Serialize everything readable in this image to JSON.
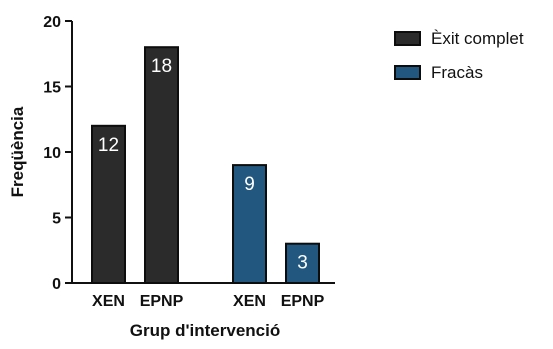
{
  "chart_data": {
    "type": "bar",
    "xlabel": "Grup d'intervenció",
    "ylabel": "Freqüència",
    "ylim": [
      0,
      20
    ],
    "yticks": [
      0,
      5,
      10,
      15,
      20
    ],
    "grid": false,
    "legend_position": "top-right",
    "series": [
      {
        "name": "Èxit complet",
        "color": "#2b2b2b",
        "categories": [
          "XEN",
          "EPNP"
        ],
        "values": [
          12,
          18
        ]
      },
      {
        "name": "Fracàs",
        "color": "#22587f",
        "categories": [
          "XEN",
          "EPNP"
        ],
        "values": [
          9,
          3
        ]
      }
    ]
  }
}
